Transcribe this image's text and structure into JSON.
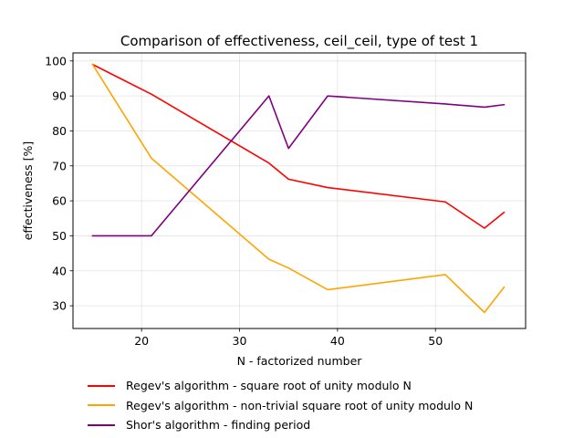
{
  "chart_data": {
    "type": "line",
    "title": "Comparison of effectiveness, ceil_ceil, type of test 1",
    "xlabel": "N - factorized number",
    "ylabel": "effectiveness [%]",
    "xlim": [
      13,
      59.2
    ],
    "ylim": [
      23.5,
      102.3
    ],
    "xticks": [
      20,
      30,
      40,
      50
    ],
    "yticks": [
      30,
      40,
      50,
      60,
      70,
      80,
      90,
      100
    ],
    "grid": true,
    "legend_position": "below",
    "x": [
      15,
      21,
      33,
      35,
      39,
      51,
      55,
      57
    ],
    "series": [
      {
        "name": "Regev's algorithm - square root of unity modulo N",
        "color": "#ff0000",
        "values": [
          99,
          90.5,
          70.8,
          66.2,
          63.8,
          59.7,
          52.2,
          56.7
        ]
      },
      {
        "name": "Regev's algorithm - non-trivial square root of unity modulo N",
        "color": "#ffa500",
        "values": [
          99,
          72.2,
          43.3,
          40.8,
          34.6,
          38.9,
          28.1,
          35.3
        ]
      },
      {
        "name": "Shor's algorithm - finding period",
        "color": "#800080",
        "values": [
          50,
          50,
          90,
          75,
          90,
          87.7,
          86.8,
          87.5
        ]
      }
    ]
  }
}
